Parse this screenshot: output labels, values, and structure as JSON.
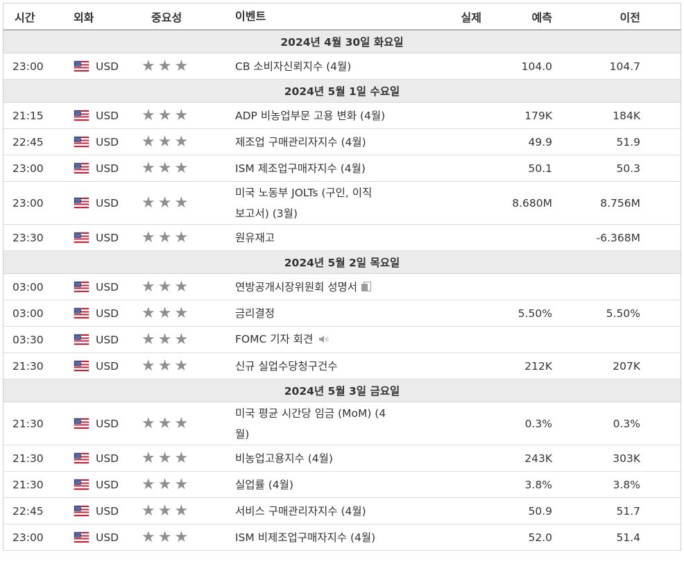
{
  "header": {
    "time": "시간",
    "currency": "외화",
    "importance": "중요성",
    "event": "이벤트",
    "actual": "실제",
    "forecast": "예측",
    "previous": "이전"
  },
  "days": [
    {
      "label": "2024년 4월 30일 화요일",
      "events": [
        {
          "time": "23:00",
          "currency": "USD",
          "event": "CB 소비자신뢰지수 (4월)",
          "actual": "",
          "forecast": "104.0",
          "previous": "104.7"
        }
      ]
    },
    {
      "label": "2024년 5월 1일 수요일",
      "events": [
        {
          "time": "21:15",
          "currency": "USD",
          "event": "ADP 비농업부문 고용 변화 (4월)",
          "actual": "",
          "forecast": "179K",
          "previous": "184K"
        },
        {
          "time": "22:45",
          "currency": "USD",
          "event": "제조업 구매관리자지수 (4월)",
          "actual": "",
          "forecast": "49.9",
          "previous": "51.9"
        },
        {
          "time": "23:00",
          "currency": "USD",
          "event": "ISM 제조업구매자지수 (4월)",
          "actual": "",
          "forecast": "50.1",
          "previous": "50.3"
        },
        {
          "time": "23:00",
          "currency": "USD",
          "event_line1": "미국 노동부 JOLTs (구인, 이직",
          "event_line2": "보고서) (3월)",
          "actual": "",
          "forecast": "8.680M",
          "previous": "8.756M"
        },
        {
          "time": "23:30",
          "currency": "USD",
          "event": "원유재고",
          "actual": "",
          "forecast": "",
          "previous": "-6.368M"
        }
      ]
    },
    {
      "label": "2024년 5월 2일 목요일",
      "events": [
        {
          "time": "03:00",
          "currency": "USD",
          "event": "연방공개시장위원회 성명서",
          "icon": "document-icon",
          "actual": "",
          "forecast": "",
          "previous": ""
        },
        {
          "time": "03:00",
          "currency": "USD",
          "event": "금리결정",
          "actual": "",
          "forecast": "5.50%",
          "previous": "5.50%"
        },
        {
          "time": "03:30",
          "currency": "USD",
          "event": "FOMC 기자 회견",
          "icon": "speaker-icon",
          "actual": "",
          "forecast": "",
          "previous": ""
        },
        {
          "time": "21:30",
          "currency": "USD",
          "event": "신규 실업수당청구건수",
          "actual": "",
          "forecast": "212K",
          "previous": "207K"
        }
      ]
    },
    {
      "label": "2024년 5월 3일 금요일",
      "events": [
        {
          "time": "21:30",
          "currency": "USD",
          "event_line1": "미국 평균 시간당 임금 (MoM) (4",
          "event_line2": "월)",
          "actual": "",
          "forecast": "0.3%",
          "previous": "0.3%"
        },
        {
          "time": "21:30",
          "currency": "USD",
          "event": "비농업고용지수 (4월)",
          "actual": "",
          "forecast": "243K",
          "previous": "303K"
        },
        {
          "time": "21:30",
          "currency": "USD",
          "event": "실업률 (4월)",
          "actual": "",
          "forecast": "3.8%",
          "previous": "3.8%"
        },
        {
          "time": "22:45",
          "currency": "USD",
          "event": "서비스 구매관리자지수 (4월)",
          "actual": "",
          "forecast": "50.9",
          "previous": "51.7"
        },
        {
          "time": "23:00",
          "currency": "USD",
          "event": "ISM 비제조업구매자지수 (4월)",
          "actual": "",
          "forecast": "52.0",
          "previous": "51.4"
        }
      ]
    }
  ],
  "importance_stars": 3,
  "colors": {
    "day_row_bg": "#ebebeb",
    "star": "#8f8f8f",
    "border": "#dcdcdc"
  }
}
